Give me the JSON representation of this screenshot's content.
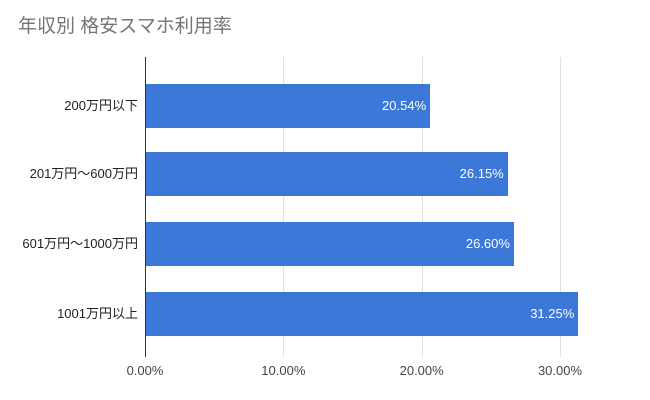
{
  "title": "年収別 格安スマホ利用率",
  "chart_data": {
    "type": "bar",
    "orientation": "horizontal",
    "title": "年収別 格安スマホ利用率",
    "categories": [
      "200万円以下",
      "201万円〜600万円",
      "601万円〜1000万円",
      "1001万円以上"
    ],
    "values": [
      20.54,
      26.15,
      26.6,
      31.25
    ],
    "value_labels": [
      "20.54%",
      "26.15%",
      "26.60%",
      "31.25%"
    ],
    "x_ticks": [
      {
        "value": 0,
        "label": "0.00%"
      },
      {
        "value": 10,
        "label": "10.00%"
      },
      {
        "value": 20,
        "label": "20.00%"
      },
      {
        "value": 30,
        "label": "30.00%"
      }
    ],
    "xlim": [
      0,
      30
    ],
    "xlabel": "",
    "ylabel": "",
    "grid": true,
    "legend": "none",
    "colors": {
      "bar": "#3c78d8",
      "title_text": "#757575",
      "category_label": "#222222",
      "tick_label": "#444444",
      "gridline": "#e0e0e0",
      "axis_line": "#333333",
      "value_label": "#ffffff",
      "background": "#ffffff"
    }
  }
}
